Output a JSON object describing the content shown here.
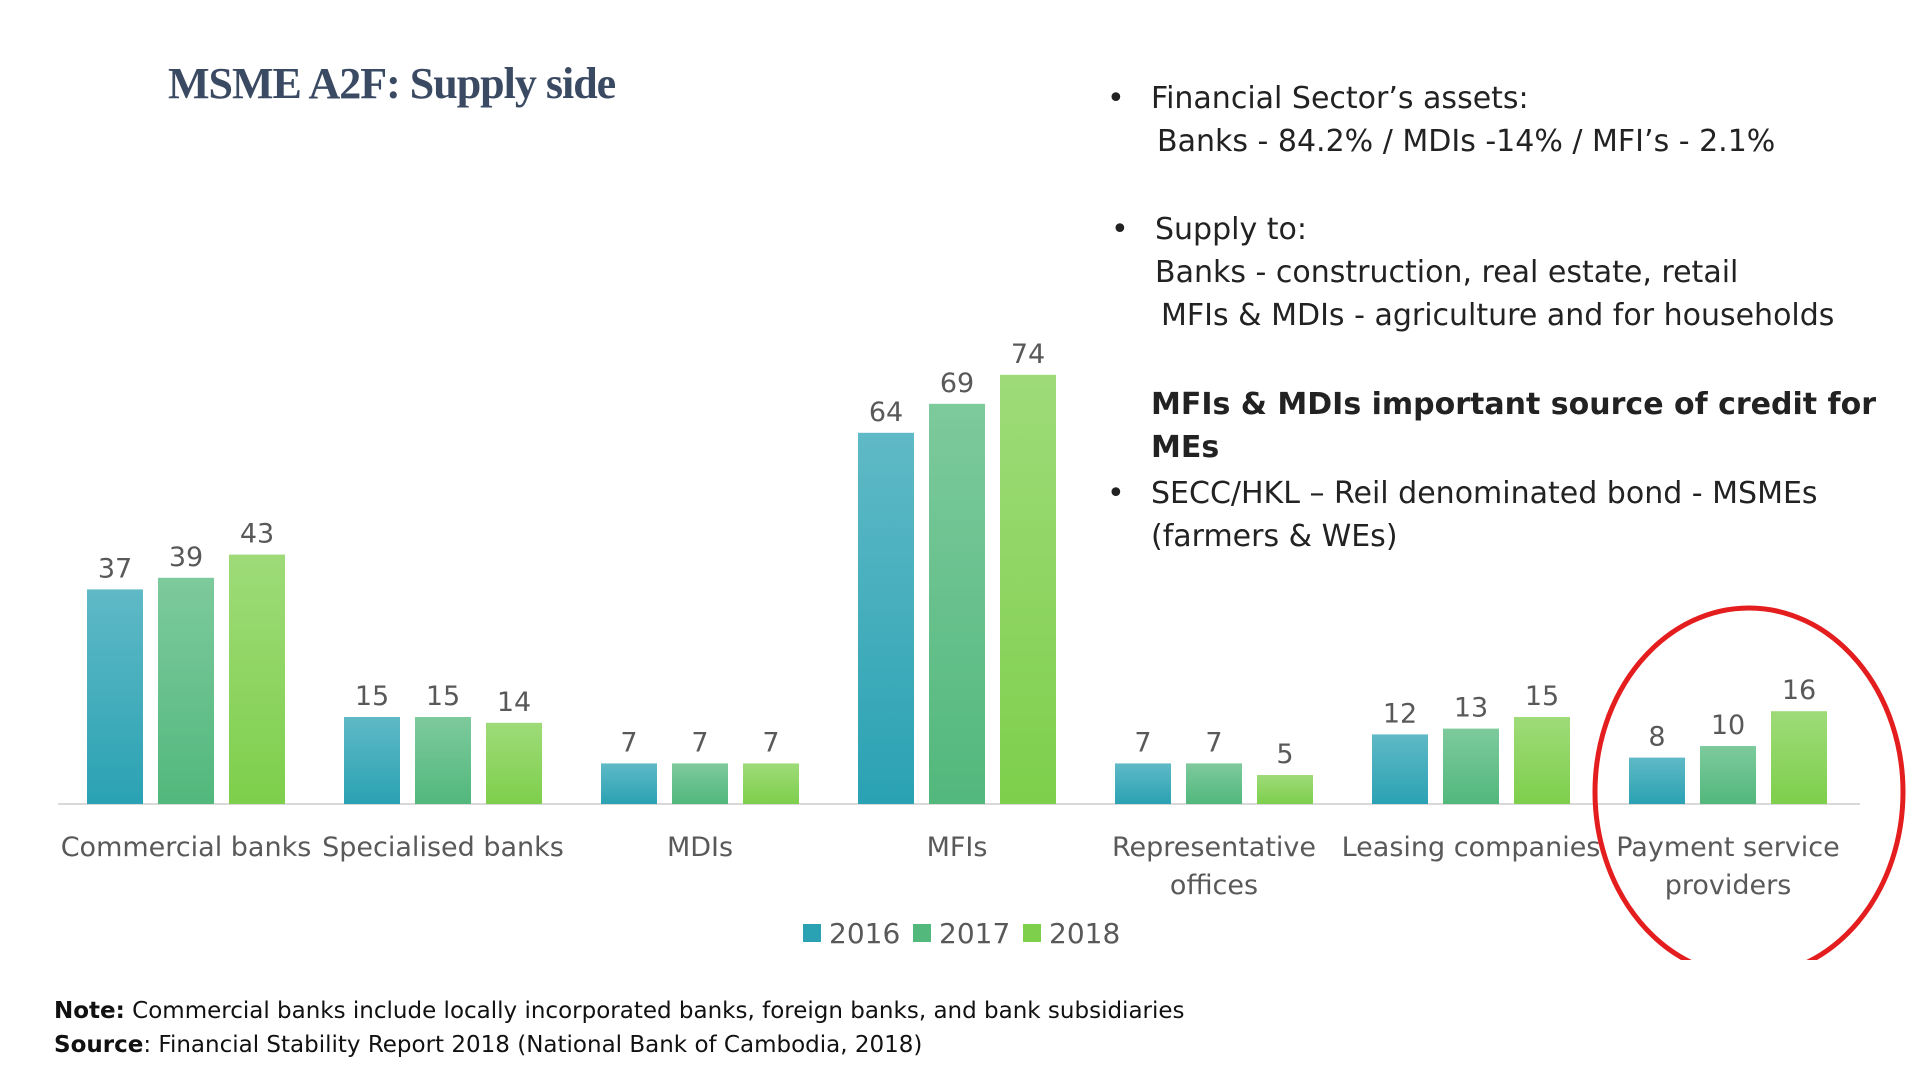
{
  "title": "MSME A2F: Supply side",
  "bullets": {
    "b1_line1": "Financial Sector’s assets:",
    "b1_line2": "Banks - 84.2% / MDIs -14% / MFI’s - 2.1%",
    "b2_line1": "Supply to:",
    "b2_line2": "Banks - construction, real estate, retail",
    "b2_line3": "MFIs & MDIs - agriculture and for households",
    "emphasis": "MFIs & MDIs important source of credit for MEs",
    "b3_line1": "SECC/HKL – Reil denominated bond - MSMEs",
    "b3_line2": "(farmers & WEs)",
    "dot": "•"
  },
  "notes": {
    "note_label": "Note:",
    "note_text": " Commercial banks include locally incorporated banks, foreign banks, and bank subsidiaries",
    "source_label": "Source",
    "source_text": ": Financial Stability Report 2018 (National Bank of Cambodia, 2018)"
  },
  "colors": {
    "2016": "#2aa2b3",
    "2017": "#52b87c",
    "2018": "#7ecf4c",
    "highlight": "#e41e1e"
  },
  "chart_data": {
    "type": "bar",
    "categories": [
      [
        "Commercial banks"
      ],
      [
        "Specialised banks"
      ],
      [
        "MDIs"
      ],
      [
        "MFIs"
      ],
      [
        "Representative",
        "offices"
      ],
      [
        "Leasing companies"
      ],
      [
        "Payment service",
        "providers"
      ]
    ],
    "series": [
      {
        "name": "2016",
        "values": [
          37,
          15,
          7,
          64,
          7,
          12,
          8
        ]
      },
      {
        "name": "2017",
        "values": [
          39,
          15,
          7,
          69,
          7,
          13,
          10
        ]
      },
      {
        "name": "2018",
        "values": [
          43,
          14,
          7,
          74,
          5,
          15,
          16
        ]
      }
    ],
    "ylim": [
      0,
      80
    ],
    "legend": "bottom-center",
    "grid": false,
    "highlighted_category": "Payment service providers"
  }
}
